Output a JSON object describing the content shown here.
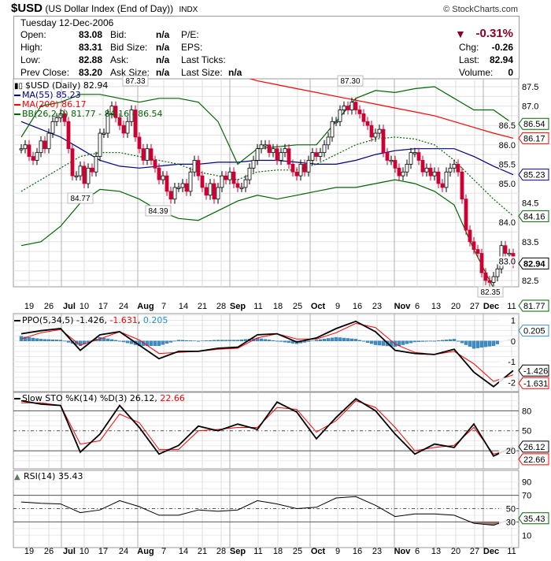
{
  "header": {
    "symbol": "$USD",
    "name": "(US Dollar Index (End of Day))",
    "exchange": "INDX",
    "copyright": "© StockCharts.com",
    "date": "Tuesday  12-Dec-2006",
    "open_label": "Open:",
    "open": "83.08",
    "high_label": "High:",
    "high": "83.31",
    "low_label": "Low:",
    "low": "82.88",
    "prev_close_label": "Prev Close:",
    "prev_close": "83.20",
    "bid_label": "Bid:",
    "bid": "n/a",
    "bid_size_label": "Bid Size:",
    "bid_size": "n/a",
    "ask_label": "Ask:",
    "ask": "n/a",
    "ask_size_label": "Ask Size:",
    "ask_size": "n/a",
    "pe_label": "P/E:",
    "eps_label": "EPS:",
    "last_ticks_label": "Last Ticks:",
    "last_size_label": "Last Size:",
    "last_size": "n/a",
    "pct_change": "-0.31%",
    "chg_label": "Chg:",
    "chg": "-0.26",
    "last_label": "Last:",
    "last": "82.94",
    "volume_label": "Volume:",
    "volume": "0"
  },
  "colors": {
    "down_candle": "#cc0033",
    "ma55": "#000080",
    "ma200": "#ff0000",
    "bb": "#006600",
    "ppo_hist": "#3a8fc7",
    "rsi_fill": "#9b7b78",
    "arrow_down": "#8b0026"
  },
  "chart_data": [
    {
      "type": "candlestick",
      "legend": {
        "price": "$USD (Daily) 82.94",
        "ma55": "MA(55) 85.23",
        "ma200": "MA(200) 86.17",
        "bb": "BB(26,2.0) 81.77 - 84.16 - 86.54"
      },
      "ylim": [
        82.3,
        87.7
      ],
      "y_ticks": [
        "87.5",
        "87.0",
        "86.5",
        "86.0",
        "85.5",
        "85.0",
        "84.5",
        "84.0",
        "83.5",
        "83.0",
        "82.5"
      ],
      "x_ticks": [
        {
          "text": "19",
          "month": false
        },
        {
          "text": "26",
          "month": false
        },
        {
          "text": "Jul",
          "month": true
        },
        {
          "text": "10",
          "month": false
        },
        {
          "text": "17",
          "month": false
        },
        {
          "text": "24",
          "month": false
        },
        {
          "text": "Aug",
          "month": true
        },
        {
          "text": "7",
          "month": false
        },
        {
          "text": "14",
          "month": false
        },
        {
          "text": "21",
          "month": false
        },
        {
          "text": "28",
          "month": false
        },
        {
          "text": "Sep",
          "month": true
        },
        {
          "text": "11",
          "month": false
        },
        {
          "text": "18",
          "month": false
        },
        {
          "text": "25",
          "month": false
        },
        {
          "text": "Oct",
          "month": true
        },
        {
          "text": "9",
          "month": false
        },
        {
          "text": "16",
          "month": false
        },
        {
          "text": "23",
          "month": false
        },
        {
          "text": "Nov",
          "month": true
        },
        {
          "text": "6",
          "month": false
        },
        {
          "text": "13",
          "month": false
        },
        {
          "text": "20",
          "month": false
        },
        {
          "text": "27",
          "month": false
        },
        {
          "text": "Dec",
          "month": true
        },
        {
          "text": "11",
          "month": false
        }
      ],
      "closes": [
        85.9,
        86.0,
        85.7,
        85.6,
        85.8,
        86.1,
        85.9,
        86.3,
        86.6,
        86.7,
        86.8,
        86.6,
        85.9,
        85.2,
        85.2,
        85.45,
        85.0,
        85.4,
        85.3,
        85.7,
        86.3,
        86.3,
        86.8,
        87.0,
        86.7,
        86.5,
        86.3,
        86.6,
        86.9,
        86.2,
        85.9,
        85.6,
        85.9,
        85.6,
        85.4,
        85.1,
        85.2,
        84.8,
        84.6,
        84.9,
        84.9,
        85.0,
        84.8,
        85.3,
        85.6,
        85.2,
        84.9,
        84.7,
        85.0,
        84.6,
        84.9,
        85.2,
        85.1,
        85.3,
        85.0,
        84.9,
        84.9,
        85.1,
        85.4,
        85.6,
        85.9,
        86.0,
        86.0,
        85.8,
        85.9,
        85.6,
        85.8,
        85.9,
        85.5,
        85.3,
        85.2,
        85.5,
        85.3,
        85.6,
        85.8,
        85.7,
        85.8,
        86.0,
        86.2,
        86.6,
        86.6,
        86.9,
        87.0,
        86.9,
        87.1,
        86.9,
        86.8,
        86.6,
        86.5,
        86.2,
        86.3,
        86.4,
        85.8,
        85.6,
        85.6,
        85.4,
        85.2,
        85.3,
        85.5,
        85.8,
        85.8,
        85.6,
        85.3,
        85.4,
        85.2,
        85.3,
        85.0,
        84.9,
        85.3,
        85.4,
        85.5,
        85.3,
        84.6,
        83.8,
        83.5,
        83.3,
        83.2,
        82.7,
        82.5,
        82.45,
        82.6,
        82.8,
        83.4,
        83.2,
        83.2,
        82.94
      ],
      "ma55": [
        86.6,
        86.4,
        86.2,
        85.9,
        85.6,
        85.45,
        85.4,
        85.45,
        85.5,
        85.5,
        85.55,
        85.55,
        85.6,
        85.6,
        85.55,
        85.5,
        85.5,
        85.6,
        85.75,
        85.85,
        85.9,
        85.9,
        85.9,
        85.7,
        85.45,
        85.23
      ],
      "ma200": [
        89.2,
        89.0,
        88.9,
        88.8,
        88.6,
        88.5,
        88.4,
        88.3,
        88.2,
        88.1,
        87.9,
        87.8,
        87.65,
        87.55,
        87.45,
        87.35,
        87.25,
        87.15,
        87.05,
        86.95,
        86.85,
        86.75,
        86.6,
        86.45,
        86.3,
        86.17
      ],
      "bb_upper": [
        86.2,
        87.0,
        87.1,
        87.3,
        87.3,
        87.2,
        87.1,
        87.2,
        87.2,
        87.1,
        86.6,
        85.5,
        85.9,
        85.95,
        86.0,
        86.0,
        86.6,
        87.2,
        87.4,
        87.35,
        87.45,
        87.5,
        87.2,
        86.9,
        86.9,
        86.54
      ],
      "bb_mid": [
        84.8,
        85.1,
        85.4,
        85.7,
        85.8,
        85.8,
        85.7,
        85.6,
        85.5,
        85.3,
        85.2,
        85.1,
        85.3,
        85.35,
        85.35,
        85.5,
        85.75,
        86.0,
        86.15,
        86.2,
        86.15,
        86.0,
        85.6,
        85.1,
        84.6,
        84.16
      ],
      "bb_lower": [
        83.4,
        83.5,
        83.9,
        84.5,
        84.85,
        84.8,
        84.6,
        84.3,
        84.1,
        84.05,
        84.3,
        84.55,
        84.7,
        84.6,
        84.7,
        84.8,
        84.9,
        84.9,
        85.0,
        85.1,
        85.0,
        84.8,
        84.45,
        83.3,
        82.3,
        81.77
      ],
      "annotations": [
        "87.33",
        "84.77",
        "84.39",
        "87.30",
        "82.35"
      ],
      "last_values": {
        "bb_upper": "86.54",
        "ma200": "86.17",
        "ma55": "85.23",
        "bb_mid": "84.16",
        "close": "82.94",
        "bb_lower": "81.77"
      }
    },
    {
      "type": "line",
      "legend": {
        "name": "PPO(5,34,5)",
        "ppo": "-1.426",
        "signal": "-1.631",
        "hist": "0.205"
      },
      "ylim": [
        -2.5,
        1.3
      ],
      "y_ticks": [
        "1",
        "0",
        "-1",
        "-2"
      ],
      "ppo": [
        0.35,
        0.5,
        0.6,
        -0.45,
        0.3,
        0.45,
        -0.2,
        -0.85,
        -0.5,
        -0.5,
        -0.35,
        -0.3,
        0.3,
        0.35,
        -0.05,
        0.15,
        0.6,
        0.95,
        0.45,
        -0.45,
        -0.6,
        -0.65,
        -0.4,
        -1.5,
        -2.2,
        -1.426
      ],
      "signal": [
        0.1,
        0.4,
        0.55,
        -0.2,
        0.1,
        0.45,
        0.05,
        -0.6,
        -0.55,
        -0.5,
        -0.4,
        -0.35,
        0.15,
        0.35,
        0.1,
        0.1,
        0.4,
        0.85,
        0.65,
        -0.15,
        -0.55,
        -0.65,
        -0.5,
        -1.1,
        -1.95,
        -1.631
      ]
    },
    {
      "type": "line",
      "legend": {
        "name": "Slow STO %K(14) %D(3)",
        "k": "26.12",
        "d": "22.66"
      },
      "ylim": [
        0,
        100
      ],
      "y_ticks": [
        "80",
        "50",
        "20"
      ],
      "k": [
        95,
        90,
        88,
        18,
        45,
        88,
        55,
        15,
        28,
        57,
        50,
        60,
        52,
        93,
        78,
        38,
        70,
        98,
        80,
        45,
        15,
        30,
        25,
        60,
        12,
        26.12
      ],
      "d": [
        92,
        92,
        88,
        30,
        35,
        75,
        62,
        22,
        22,
        50,
        52,
        55,
        55,
        85,
        82,
        48,
        65,
        95,
        85,
        55,
        20,
        25,
        28,
        55,
        15,
        22.66
      ]
    },
    {
      "type": "line",
      "legend": {
        "name": "RSI(14)",
        "value": "35.43"
      },
      "ylim": [
        0,
        100
      ],
      "y_ticks": [
        "90",
        "70",
        "50",
        "30",
        "10"
      ],
      "rsi": [
        60,
        58,
        57,
        44,
        48,
        62,
        53,
        40,
        40,
        48,
        46,
        48,
        62,
        57,
        50,
        52,
        66,
        68,
        55,
        38,
        42,
        42,
        40,
        28,
        25,
        35.43
      ]
    }
  ]
}
